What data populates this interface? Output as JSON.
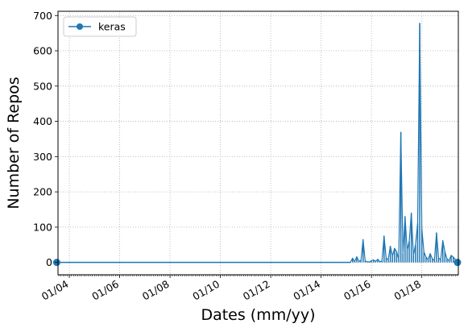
{
  "chart_data": {
    "type": "line",
    "title": "",
    "xlabel": "Dates (mm/yy)",
    "ylabel": "Number of Repos",
    "x_tick_labels": [
      "01/04",
      "01/06",
      "01/08",
      "01/10",
      "01/12",
      "01/14",
      "01/16",
      "01/18"
    ],
    "x_tick_years": [
      2004,
      2006,
      2008,
      2010,
      2012,
      2014,
      2016,
      2018
    ],
    "y_ticks": [
      0,
      100,
      200,
      300,
      400,
      500,
      600,
      700
    ],
    "xlim": [
      2003.55,
      2019.45
    ],
    "ylim": [
      -35,
      712
    ],
    "grid": true,
    "legend_position": "top-left",
    "series": [
      {
        "name": "keras",
        "color": "#1f77b4",
        "baseline": {
          "x_start": "2003-07",
          "x_end": "2015-03",
          "y": 0
        },
        "endpoints": [
          {
            "x": "2003-07",
            "y": 0
          },
          {
            "x": "2019-06",
            "y": 0
          }
        ],
        "points": [
          {
            "x": "2015-03",
            "y": 0
          },
          {
            "x": "2015-04",
            "y": 12
          },
          {
            "x": "2015-05",
            "y": 2
          },
          {
            "x": "2015-06",
            "y": 16
          },
          {
            "x": "2015-07",
            "y": 3
          },
          {
            "x": "2015-08",
            "y": 6
          },
          {
            "x": "2015-09",
            "y": 65
          },
          {
            "x": "2015-10",
            "y": 4
          },
          {
            "x": "2015-11",
            "y": 2
          },
          {
            "x": "2015-12",
            "y": 1
          },
          {
            "x": "2016-01",
            "y": 5
          },
          {
            "x": "2016-02",
            "y": 7
          },
          {
            "x": "2016-03",
            "y": 3
          },
          {
            "x": "2016-04",
            "y": 9
          },
          {
            "x": "2016-05",
            "y": 2
          },
          {
            "x": "2016-06",
            "y": 4
          },
          {
            "x": "2016-07",
            "y": 75
          },
          {
            "x": "2016-08",
            "y": 12
          },
          {
            "x": "2016-09",
            "y": 8
          },
          {
            "x": "2016-10",
            "y": 46
          },
          {
            "x": "2016-11",
            "y": 18
          },
          {
            "x": "2016-12",
            "y": 40
          },
          {
            "x": "2017-01",
            "y": 30
          },
          {
            "x": "2017-02",
            "y": 10
          },
          {
            "x": "2017-03",
            "y": 369
          },
          {
            "x": "2017-04",
            "y": 25
          },
          {
            "x": "2017-05",
            "y": 130
          },
          {
            "x": "2017-06",
            "y": 35
          },
          {
            "x": "2017-07",
            "y": 60
          },
          {
            "x": "2017-08",
            "y": 140
          },
          {
            "x": "2017-09",
            "y": 20
          },
          {
            "x": "2017-10",
            "y": 50
          },
          {
            "x": "2017-11",
            "y": 110
          },
          {
            "x": "2017-12",
            "y": 678
          },
          {
            "x": "2018-01",
            "y": 95
          },
          {
            "x": "2018-02",
            "y": 30
          },
          {
            "x": "2018-03",
            "y": 15
          },
          {
            "x": "2018-04",
            "y": 8
          },
          {
            "x": "2018-05",
            "y": 25
          },
          {
            "x": "2018-06",
            "y": 10
          },
          {
            "x": "2018-07",
            "y": 6
          },
          {
            "x": "2018-08",
            "y": 84
          },
          {
            "x": "2018-09",
            "y": 12
          },
          {
            "x": "2018-10",
            "y": 8
          },
          {
            "x": "2018-11",
            "y": 62
          },
          {
            "x": "2018-12",
            "y": 30
          },
          {
            "x": "2019-01",
            "y": 10
          },
          {
            "x": "2019-02",
            "y": 5
          },
          {
            "x": "2019-03",
            "y": 20
          },
          {
            "x": "2019-04",
            "y": 15
          },
          {
            "x": "2019-05",
            "y": 8
          },
          {
            "x": "2019-06",
            "y": 0
          }
        ]
      }
    ]
  }
}
